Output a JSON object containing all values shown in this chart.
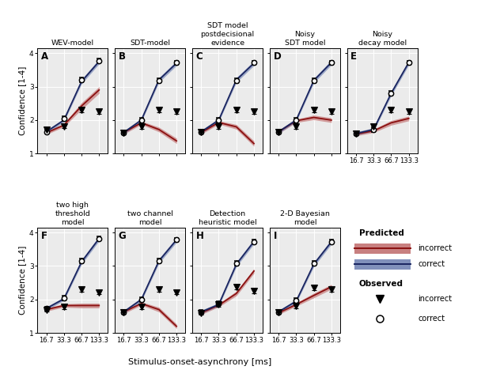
{
  "soa_labels": [
    "16.7",
    "33.3",
    "66.7",
    "133.3"
  ],
  "panels": [
    {
      "label": "A",
      "title": "WEV-model",
      "row": 0,
      "col": 0,
      "pred_correct_mean": [
        1.65,
        2.0,
        3.15,
        3.75
      ],
      "pred_correct_lower": [
        1.6,
        1.95,
        3.08,
        3.68
      ],
      "pred_correct_upper": [
        1.7,
        2.05,
        3.22,
        3.82
      ],
      "pred_incorrect_mean": [
        1.62,
        1.85,
        2.42,
        2.9
      ],
      "pred_incorrect_lower": [
        1.57,
        1.8,
        2.32,
        2.8
      ],
      "pred_incorrect_upper": [
        1.67,
        1.9,
        2.52,
        3.0
      ],
      "obs_correct_mean": [
        1.65,
        2.05,
        3.2,
        3.78
      ],
      "obs_correct_err": [
        0.06,
        0.07,
        0.07,
        0.06
      ],
      "obs_incorrect_mean": [
        1.72,
        1.82,
        2.3,
        2.25
      ],
      "obs_incorrect_err": [
        0.06,
        0.06,
        0.07,
        0.07
      ]
    },
    {
      "label": "B",
      "title": "SDT-model",
      "row": 0,
      "col": 1,
      "pred_correct_mean": [
        1.63,
        2.0,
        3.2,
        3.7
      ],
      "pred_correct_lower": [
        1.58,
        1.95,
        3.13,
        3.63
      ],
      "pred_correct_upper": [
        1.68,
        2.05,
        3.27,
        3.77
      ],
      "pred_incorrect_mean": [
        1.63,
        1.92,
        1.72,
        1.38
      ],
      "pred_incorrect_lower": [
        1.58,
        1.87,
        1.65,
        1.3
      ],
      "pred_incorrect_upper": [
        1.68,
        1.97,
        1.79,
        1.46
      ],
      "obs_correct_mean": [
        1.63,
        2.0,
        3.18,
        3.72
      ],
      "obs_correct_err": [
        0.06,
        0.07,
        0.07,
        0.06
      ],
      "obs_incorrect_mean": [
        1.63,
        1.8,
        2.3,
        2.25
      ],
      "obs_incorrect_err": [
        0.06,
        0.06,
        0.07,
        0.07
      ]
    },
    {
      "label": "C",
      "title": "SDT model\npostdecisional\nevidence",
      "row": 0,
      "col": 2,
      "pred_correct_mean": [
        1.65,
        2.0,
        3.2,
        3.7
      ],
      "pred_correct_lower": [
        1.6,
        1.95,
        3.13,
        3.63
      ],
      "pred_correct_upper": [
        1.7,
        2.05,
        3.27,
        3.77
      ],
      "pred_incorrect_mean": [
        1.63,
        1.93,
        1.8,
        1.3
      ],
      "pred_incorrect_lower": [
        1.58,
        1.88,
        1.73,
        1.22
      ],
      "pred_incorrect_upper": [
        1.68,
        1.98,
        1.87,
        1.38
      ],
      "obs_correct_mean": [
        1.65,
        2.0,
        3.18,
        3.72
      ],
      "obs_correct_err": [
        0.06,
        0.07,
        0.07,
        0.06
      ],
      "obs_incorrect_mean": [
        1.65,
        1.8,
        2.3,
        2.25
      ],
      "obs_incorrect_err": [
        0.06,
        0.06,
        0.07,
        0.07
      ]
    },
    {
      "label": "D",
      "title": "Noisy\nSDT model",
      "row": 0,
      "col": 3,
      "pred_correct_mean": [
        1.65,
        2.0,
        3.18,
        3.72
      ],
      "pred_correct_lower": [
        1.6,
        1.95,
        3.11,
        3.65
      ],
      "pred_correct_upper": [
        1.7,
        2.05,
        3.25,
        3.79
      ],
      "pred_incorrect_mean": [
        1.65,
        1.98,
        2.08,
        2.0
      ],
      "pred_incorrect_lower": [
        1.6,
        1.93,
        2.01,
        1.93
      ],
      "pred_incorrect_upper": [
        1.7,
        2.03,
        2.15,
        2.07
      ],
      "obs_correct_mean": [
        1.65,
        2.0,
        3.18,
        3.72
      ],
      "obs_correct_err": [
        0.06,
        0.07,
        0.07,
        0.06
      ],
      "obs_incorrect_mean": [
        1.65,
        1.8,
        2.3,
        2.25
      ],
      "obs_incorrect_err": [
        0.06,
        0.06,
        0.07,
        0.07
      ]
    },
    {
      "label": "E",
      "title": "Noisy\ndecay model",
      "row": 0,
      "col": 4,
      "pred_correct_mean": [
        1.6,
        1.72,
        2.8,
        3.72
      ],
      "pred_correct_lower": [
        1.55,
        1.67,
        2.73,
        3.65
      ],
      "pred_correct_upper": [
        1.65,
        1.77,
        2.87,
        3.79
      ],
      "pred_incorrect_mean": [
        1.58,
        1.68,
        1.92,
        2.05
      ],
      "pred_incorrect_lower": [
        1.53,
        1.63,
        1.85,
        1.98
      ],
      "pred_incorrect_upper": [
        1.63,
        1.73,
        1.99,
        2.12
      ],
      "obs_correct_mean": [
        1.6,
        1.72,
        2.8,
        3.72
      ],
      "obs_correct_err": [
        0.06,
        0.07,
        0.07,
        0.06
      ],
      "obs_incorrect_mean": [
        1.6,
        1.8,
        2.3,
        2.25
      ],
      "obs_incorrect_err": [
        0.06,
        0.06,
        0.07,
        0.07
      ]
    },
    {
      "label": "F",
      "title": "two high\nthreshold\nmodel",
      "row": 1,
      "col": 0,
      "pred_correct_mean": [
        1.73,
        2.02,
        3.12,
        3.82
      ],
      "pred_correct_lower": [
        1.68,
        1.97,
        3.05,
        3.75
      ],
      "pred_correct_upper": [
        1.78,
        2.07,
        3.19,
        3.89
      ],
      "pred_incorrect_mean": [
        1.7,
        1.82,
        1.82,
        1.82
      ],
      "pred_incorrect_lower": [
        1.65,
        1.77,
        1.75,
        1.75
      ],
      "pred_incorrect_upper": [
        1.75,
        1.87,
        1.89,
        1.89
      ],
      "obs_correct_mean": [
        1.73,
        2.05,
        3.15,
        3.82
      ],
      "obs_correct_err": [
        0.06,
        0.07,
        0.07,
        0.06
      ],
      "obs_incorrect_mean": [
        1.7,
        1.78,
        2.3,
        2.22
      ],
      "obs_incorrect_err": [
        0.06,
        0.06,
        0.07,
        0.07
      ]
    },
    {
      "label": "G",
      "title": "two channel\nmodel",
      "row": 1,
      "col": 1,
      "pred_correct_mean": [
        1.63,
        2.0,
        3.15,
        3.78
      ],
      "pred_correct_lower": [
        1.58,
        1.95,
        3.08,
        3.71
      ],
      "pred_correct_upper": [
        1.68,
        2.05,
        3.22,
        3.85
      ],
      "pred_incorrect_mean": [
        1.63,
        1.88,
        1.7,
        1.2
      ],
      "pred_incorrect_lower": [
        1.58,
        1.83,
        1.63,
        1.13
      ],
      "pred_incorrect_upper": [
        1.68,
        1.93,
        1.77,
        1.27
      ],
      "obs_correct_mean": [
        1.63,
        2.0,
        3.15,
        3.78
      ],
      "obs_correct_err": [
        0.06,
        0.07,
        0.07,
        0.06
      ],
      "obs_incorrect_mean": [
        1.63,
        1.78,
        2.3,
        2.22
      ],
      "obs_incorrect_err": [
        0.06,
        0.06,
        0.07,
        0.07
      ]
    },
    {
      "label": "H",
      "title": "Detection\nheuristic model",
      "row": 1,
      "col": 2,
      "pred_correct_mean": [
        1.63,
        1.85,
        3.05,
        3.73
      ],
      "pred_correct_lower": [
        1.58,
        1.8,
        2.98,
        3.66
      ],
      "pred_correct_upper": [
        1.68,
        1.9,
        3.12,
        3.8
      ],
      "pred_incorrect_mean": [
        1.6,
        1.83,
        2.18,
        2.85
      ],
      "pred_incorrect_lower": [
        1.55,
        1.78,
        2.11,
        2.78
      ],
      "pred_incorrect_upper": [
        1.65,
        1.88,
        2.25,
        2.92
      ],
      "obs_correct_mean": [
        1.63,
        1.88,
        3.08,
        3.73
      ],
      "obs_correct_err": [
        0.06,
        0.07,
        0.07,
        0.06
      ],
      "obs_incorrect_mean": [
        1.6,
        1.85,
        2.38,
        2.25
      ],
      "obs_incorrect_err": [
        0.06,
        0.06,
        0.07,
        0.07
      ]
    },
    {
      "label": "I",
      "title": "2-D Bayesian\nmodel",
      "row": 1,
      "col": 3,
      "pred_correct_mean": [
        1.63,
        1.95,
        3.05,
        3.72
      ],
      "pred_correct_lower": [
        1.58,
        1.9,
        2.98,
        3.65
      ],
      "pred_correct_upper": [
        1.68,
        2.0,
        3.12,
        3.79
      ],
      "pred_incorrect_mean": [
        1.6,
        1.85,
        2.12,
        2.38
      ],
      "pred_incorrect_lower": [
        1.55,
        1.8,
        2.05,
        2.31
      ],
      "pred_incorrect_upper": [
        1.65,
        1.9,
        2.19,
        2.45
      ],
      "obs_correct_mean": [
        1.63,
        1.98,
        3.08,
        3.72
      ],
      "obs_correct_err": [
        0.06,
        0.07,
        0.07,
        0.06
      ],
      "obs_incorrect_mean": [
        1.63,
        1.8,
        2.35,
        2.3
      ],
      "obs_incorrect_err": [
        0.06,
        0.06,
        0.07,
        0.07
      ]
    }
  ],
  "color_correct_line": "#1a2560",
  "color_correct_band": "#8090bb",
  "color_incorrect_line": "#8b1010",
  "color_incorrect_band": "#c88080",
  "ylim": [
    1.0,
    4.15
  ],
  "yticks": [
    1,
    2,
    3,
    4
  ],
  "xlabel": "Stimulus-onset-asynchrony [ms]",
  "ylabel": "Confidence [1-4]",
  "bg_color": "#ebebeb"
}
